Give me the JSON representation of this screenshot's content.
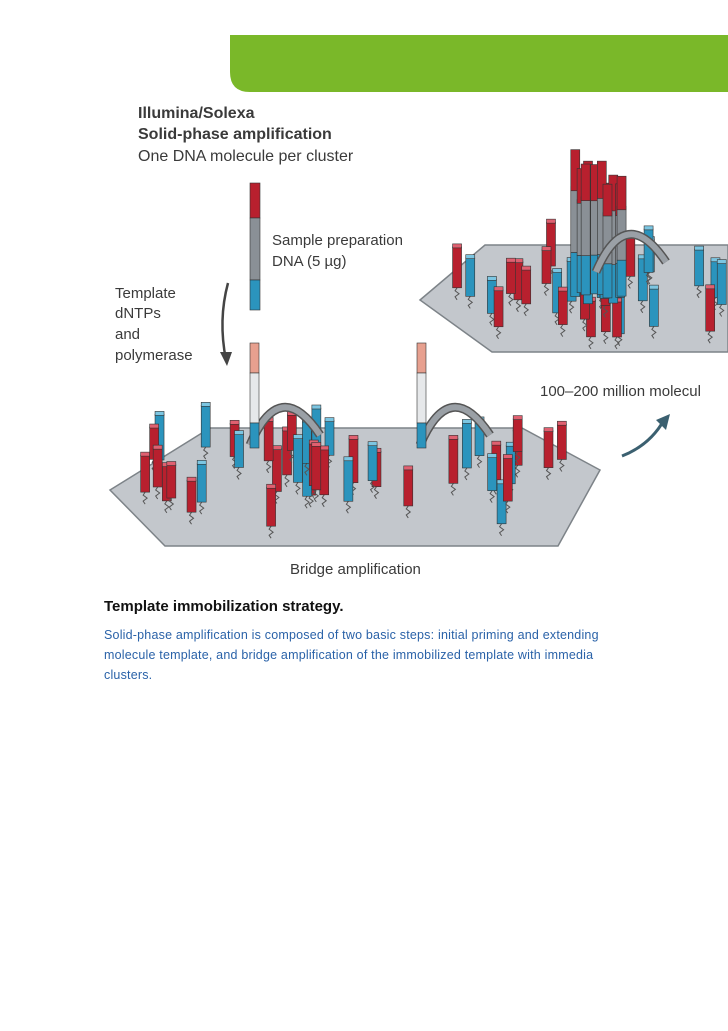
{
  "figure": {
    "heading": [
      "Illumina/Solexa",
      "Solid-phase amplification"
    ],
    "subheading": "One DNA molecule per cluster",
    "sample_label": [
      "Sample preparation",
      "DNA (5 µg)"
    ],
    "reagents_label": [
      "Template",
      "dNTPs",
      "and",
      "polymerase"
    ],
    "cluster_label": "100–200 million molecul",
    "bridge_label": "Bridge amplification"
  },
  "caption": {
    "title": "Template immobilization strategy.",
    "lines": [
      "Solid-phase amplification is composed of two basic steps: initial priming and extending",
      "molecule template, and bridge amplification of the immobilized template with immedia",
      "clusters."
    ]
  }
}
